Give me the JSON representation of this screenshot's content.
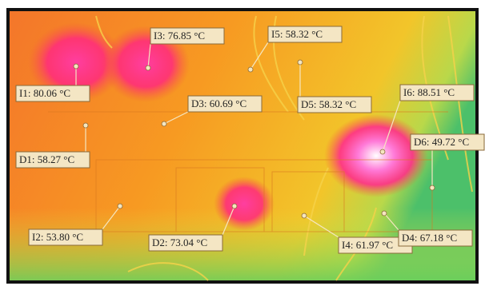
{
  "labels": [
    {
      "text": "I1: 80.06 °C"
    },
    {
      "text": "I3: 76.85 °C"
    },
    {
      "text": "I5: 58.32 °C"
    },
    {
      "text": "D3: 60.69 °C"
    },
    {
      "text": "D5: 58.32 °C"
    },
    {
      "text": "I6: 88.51 °C"
    },
    {
      "text": "D1: 58.27 °C"
    },
    {
      "text": "D6: 49.72 °C"
    },
    {
      "text": "I2: 53.80 °C"
    },
    {
      "text": "D2: 73.04 °C"
    },
    {
      "text": "I4: 61.97 °C"
    },
    {
      "text": "D4: 67.18 °C"
    }
  ]
}
